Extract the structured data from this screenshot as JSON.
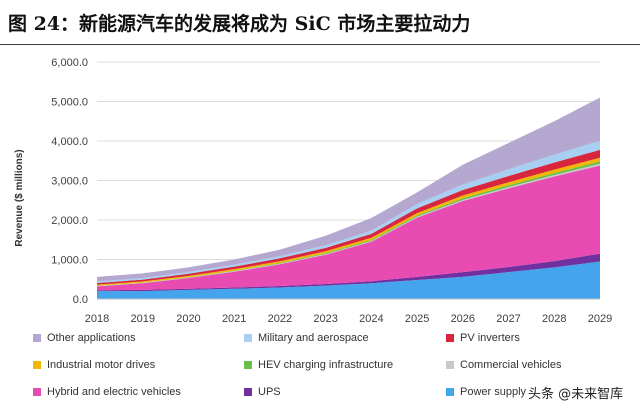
{
  "figure": {
    "watermark": "头条 @未来智库"
  },
  "chart_data": {
    "type": "area",
    "stacked": true,
    "title": "图 24：新能源汽车的发展将成为 SiC 市场主要拉动力",
    "ylabel": "Revenue ($ millions)",
    "ylim": [
      0,
      6000
    ],
    "grid": true,
    "legend_position": "bottom",
    "yticks": [
      {
        "value": 0,
        "label": "0.0"
      },
      {
        "value": 1000,
        "label": "1,000.0"
      },
      {
        "value": 2000,
        "label": "2,000.0"
      },
      {
        "value": 3000,
        "label": "3,000.0"
      },
      {
        "value": 4000,
        "label": "4,000.0"
      },
      {
        "value": 5000,
        "label": "5,000.0"
      },
      {
        "value": 6000,
        "label": "6,000.0"
      }
    ],
    "categories": [
      "2018",
      "2019",
      "2020",
      "2021",
      "2022",
      "2023",
      "2024",
      "2025",
      "2026",
      "2027",
      "2028",
      "2029"
    ],
    "series": [
      {
        "name": "Other applications",
        "color": "#b4a7d0",
        "values": [
          115,
          120,
          115,
          130,
          165,
          240,
          320,
          295,
          500,
          665,
          845,
          1095
        ]
      },
      {
        "name": "Military and aerospace",
        "color": "#a8cef2",
        "values": [
          40,
          40,
          45,
          50,
          55,
          65,
          80,
          110,
          140,
          170,
          200,
          230
        ]
      },
      {
        "name": "PV inverters",
        "color": "#d7263d",
        "values": [
          40,
          45,
          55,
          65,
          75,
          85,
          100,
          120,
          140,
          160,
          180,
          200
        ]
      },
      {
        "name": "Industrial motor drives",
        "color": "#f2b705",
        "values": [
          30,
          30,
          35,
          40,
          45,
          50,
          55,
          60,
          70,
          75,
          85,
          90
        ]
      },
      {
        "name": "HEV charging infrastructure",
        "color": "#6abf4b",
        "values": [
          5,
          5,
          10,
          10,
          15,
          20,
          25,
          30,
          40,
          45,
          50,
          60
        ]
      },
      {
        "name": "Commercial vehicles",
        "color": "#c8c8c8",
        "values": [
          10,
          10,
          10,
          15,
          15,
          20,
          20,
          25,
          30,
          35,
          40,
          45
        ]
      },
      {
        "name": "Hybrid and electric vehicles",
        "color": "#e84cb3",
        "values": [
          100,
          170,
          270,
          400,
          550,
          740,
          1000,
          1500,
          1800,
          1990,
          2140,
          2230
        ]
      },
      {
        "name": "UPS",
        "color": "#7030a0",
        "values": [
          20,
          30,
          30,
          30,
          40,
          40,
          50,
          80,
          120,
          130,
          160,
          200
        ]
      },
      {
        "name": "Power supply",
        "color": "#45a5ec",
        "values": [
          200,
          200,
          230,
          260,
          290,
          340,
          400,
          480,
          560,
          680,
          800,
          950
        ]
      }
    ]
  }
}
